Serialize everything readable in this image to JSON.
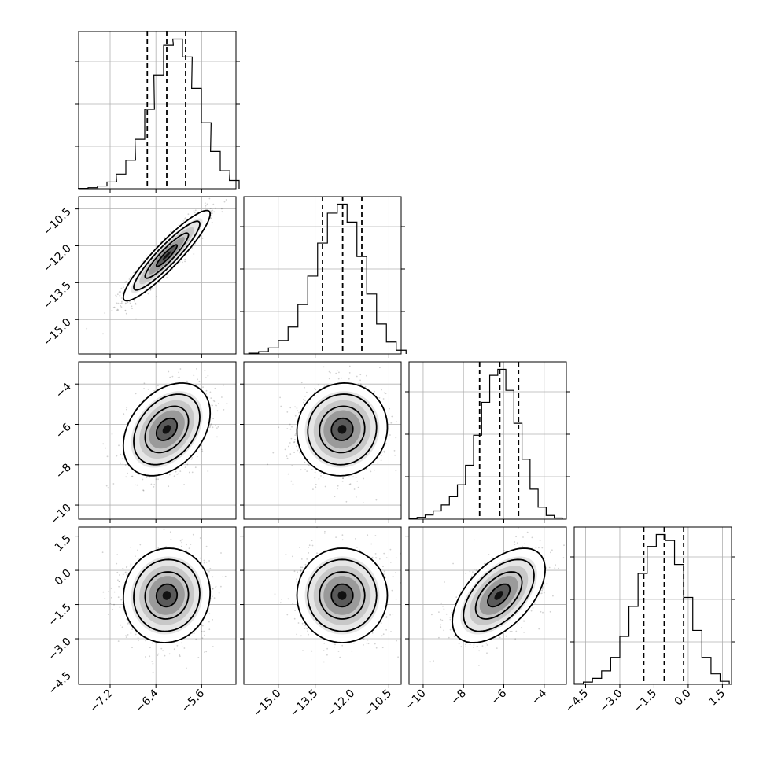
{
  "chart_data": {
    "type": "corner",
    "title": "",
    "grid": true,
    "parameters": [
      {
        "label": "",
        "range": [
          -7.75,
          -5.0
        ],
        "ticks": [
          -7.2,
          -6.4,
          -5.6
        ],
        "tick_labels": [
          "−7.2",
          "−6.4",
          "−5.6"
        ],
        "quantiles": [
          -6.55,
          -6.21,
          -5.88
        ],
        "mean": -6.21,
        "sd": 0.33
      },
      {
        "label": "",
        "range": [
          -16.4,
          -10.0
        ],
        "ticks": [
          -15.0,
          -13.5,
          -12.0,
          -10.5
        ],
        "tick_labels": [
          "−15.0",
          "−13.5",
          "−12.0",
          "−10.5"
        ],
        "quantiles": [
          -13.2,
          -12.38,
          -11.6
        ],
        "mean": -12.4,
        "sd": 0.8
      },
      {
        "label": "",
        "range": [
          -10.7,
          -2.9
        ],
        "ticks": [
          -10,
          -8,
          -6,
          -4
        ],
        "tick_labels": [
          "−10",
          "−8",
          "−6",
          "−4"
        ],
        "quantiles": [
          -7.2,
          -6.2,
          -5.27
        ],
        "mean": -6.25,
        "sd": 1.0
      },
      {
        "label": "",
        "range": [
          -5.0,
          1.9
        ],
        "ticks": [
          -4.5,
          -3.0,
          -1.5,
          0.0,
          1.5
        ],
        "tick_labels": [
          "−4.5",
          "−3.0",
          "−1.5",
          "0.0",
          "1.5"
        ],
        "quantiles": [
          -1.95,
          -1.05,
          -0.2
        ],
        "mean": -1.1,
        "sd": 0.9
      }
    ],
    "histograms": [
      {
        "param": 0,
        "x": [
          -7.67,
          -7.5,
          -7.34,
          -7.17,
          -7.01,
          -6.84,
          -6.68,
          -6.51,
          -6.35,
          -6.18,
          -6.02,
          -5.85,
          -5.69,
          -5.52,
          -5.36,
          -5.19,
          -5.03
        ],
        "values": [
          2,
          7,
          18,
          45,
          98,
          190,
          330,
          530,
          760,
          960,
          1000,
          880,
          670,
          440,
          250,
          120,
          55
        ]
      },
      {
        "param": 1,
        "x": [
          -16.0,
          -15.6,
          -15.2,
          -14.8,
          -14.4,
          -14.0,
          -13.6,
          -13.2,
          -12.8,
          -12.4,
          -12.0,
          -11.6,
          -11.2,
          -10.8,
          -10.4,
          -10.0
        ],
        "values": [
          5,
          15,
          40,
          90,
          180,
          330,
          520,
          740,
          940,
          1000,
          880,
          650,
          400,
          200,
          80,
          25
        ]
      },
      {
        "param": 2,
        "x": [
          -10.5,
          -10.1,
          -9.7,
          -9.3,
          -8.9,
          -8.5,
          -8.1,
          -7.7,
          -7.3,
          -6.9,
          -6.5,
          -6.1,
          -5.7,
          -5.3,
          -4.9,
          -4.5,
          -4.1,
          -3.7,
          -3.3
        ],
        "values": [
          5,
          12,
          28,
          55,
          95,
          150,
          230,
          360,
          560,
          780,
          960,
          1000,
          860,
          640,
          400,
          200,
          80,
          25,
          8
        ]
      },
      {
        "param": 3,
        "x": [
          -4.8,
          -4.4,
          -4.0,
          -3.6,
          -3.2,
          -2.8,
          -2.4,
          -2.0,
          -1.6,
          -1.2,
          -0.8,
          -0.4,
          0.0,
          0.4,
          0.8,
          1.2,
          1.6
        ],
        "values": [
          5,
          15,
          40,
          90,
          180,
          320,
          520,
          740,
          920,
          1000,
          960,
          800,
          580,
          360,
          180,
          70,
          20
        ]
      }
    ],
    "pairs": [
      {
        "x": 0,
        "y": 1,
        "correlation": 0.92
      },
      {
        "x": 0,
        "y": 2,
        "correlation": 0.35
      },
      {
        "x": 1,
        "y": 2,
        "correlation": 0.05
      },
      {
        "x": 0,
        "y": 3,
        "correlation": 0.05
      },
      {
        "x": 1,
        "y": 3,
        "correlation": 0.0
      },
      {
        "x": 2,
        "y": 3,
        "correlation": 0.55
      }
    ],
    "colors": {
      "line": "#000000",
      "grid": "#b0b0b0",
      "points": "#000000"
    }
  }
}
